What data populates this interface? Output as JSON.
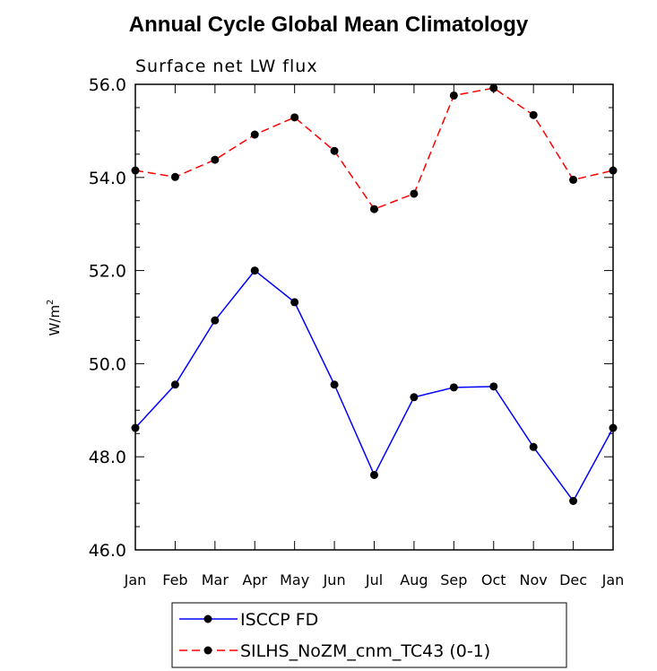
{
  "chart_data": {
    "type": "line",
    "title": "Annual Cycle Global Mean Climatology",
    "subtitle": "Surface net LW flux",
    "ylabel": "W/m",
    "ylabel_sup": "2",
    "xlabel": "",
    "categories": [
      "Jan",
      "Feb",
      "Mar",
      "Apr",
      "May",
      "Jun",
      "Jul",
      "Aug",
      "Sep",
      "Oct",
      "Nov",
      "Dec",
      "Jan"
    ],
    "ylim": [
      46.0,
      56.0
    ],
    "yticks": [
      "46.0",
      "48.0",
      "50.0",
      "52.0",
      "54.0",
      "56.0"
    ],
    "series": [
      {
        "name": "ISCCP FD",
        "color": "#0000ff",
        "dash": "solid",
        "values": [
          48.62,
          49.55,
          50.93,
          52.0,
          51.32,
          49.55,
          47.61,
          49.28,
          49.49,
          49.51,
          48.21,
          47.05,
          48.62
        ]
      },
      {
        "name": "SILHS_NoZM_cnm_TC43 (0-1)",
        "color": "#ff0000",
        "dash": "dashed",
        "values": [
          54.15,
          54.01,
          54.38,
          54.92,
          55.29,
          54.57,
          53.32,
          53.65,
          55.76,
          55.92,
          55.34,
          53.95,
          54.15
        ]
      }
    ],
    "legend_position": "bottom-center",
    "grid": false
  }
}
